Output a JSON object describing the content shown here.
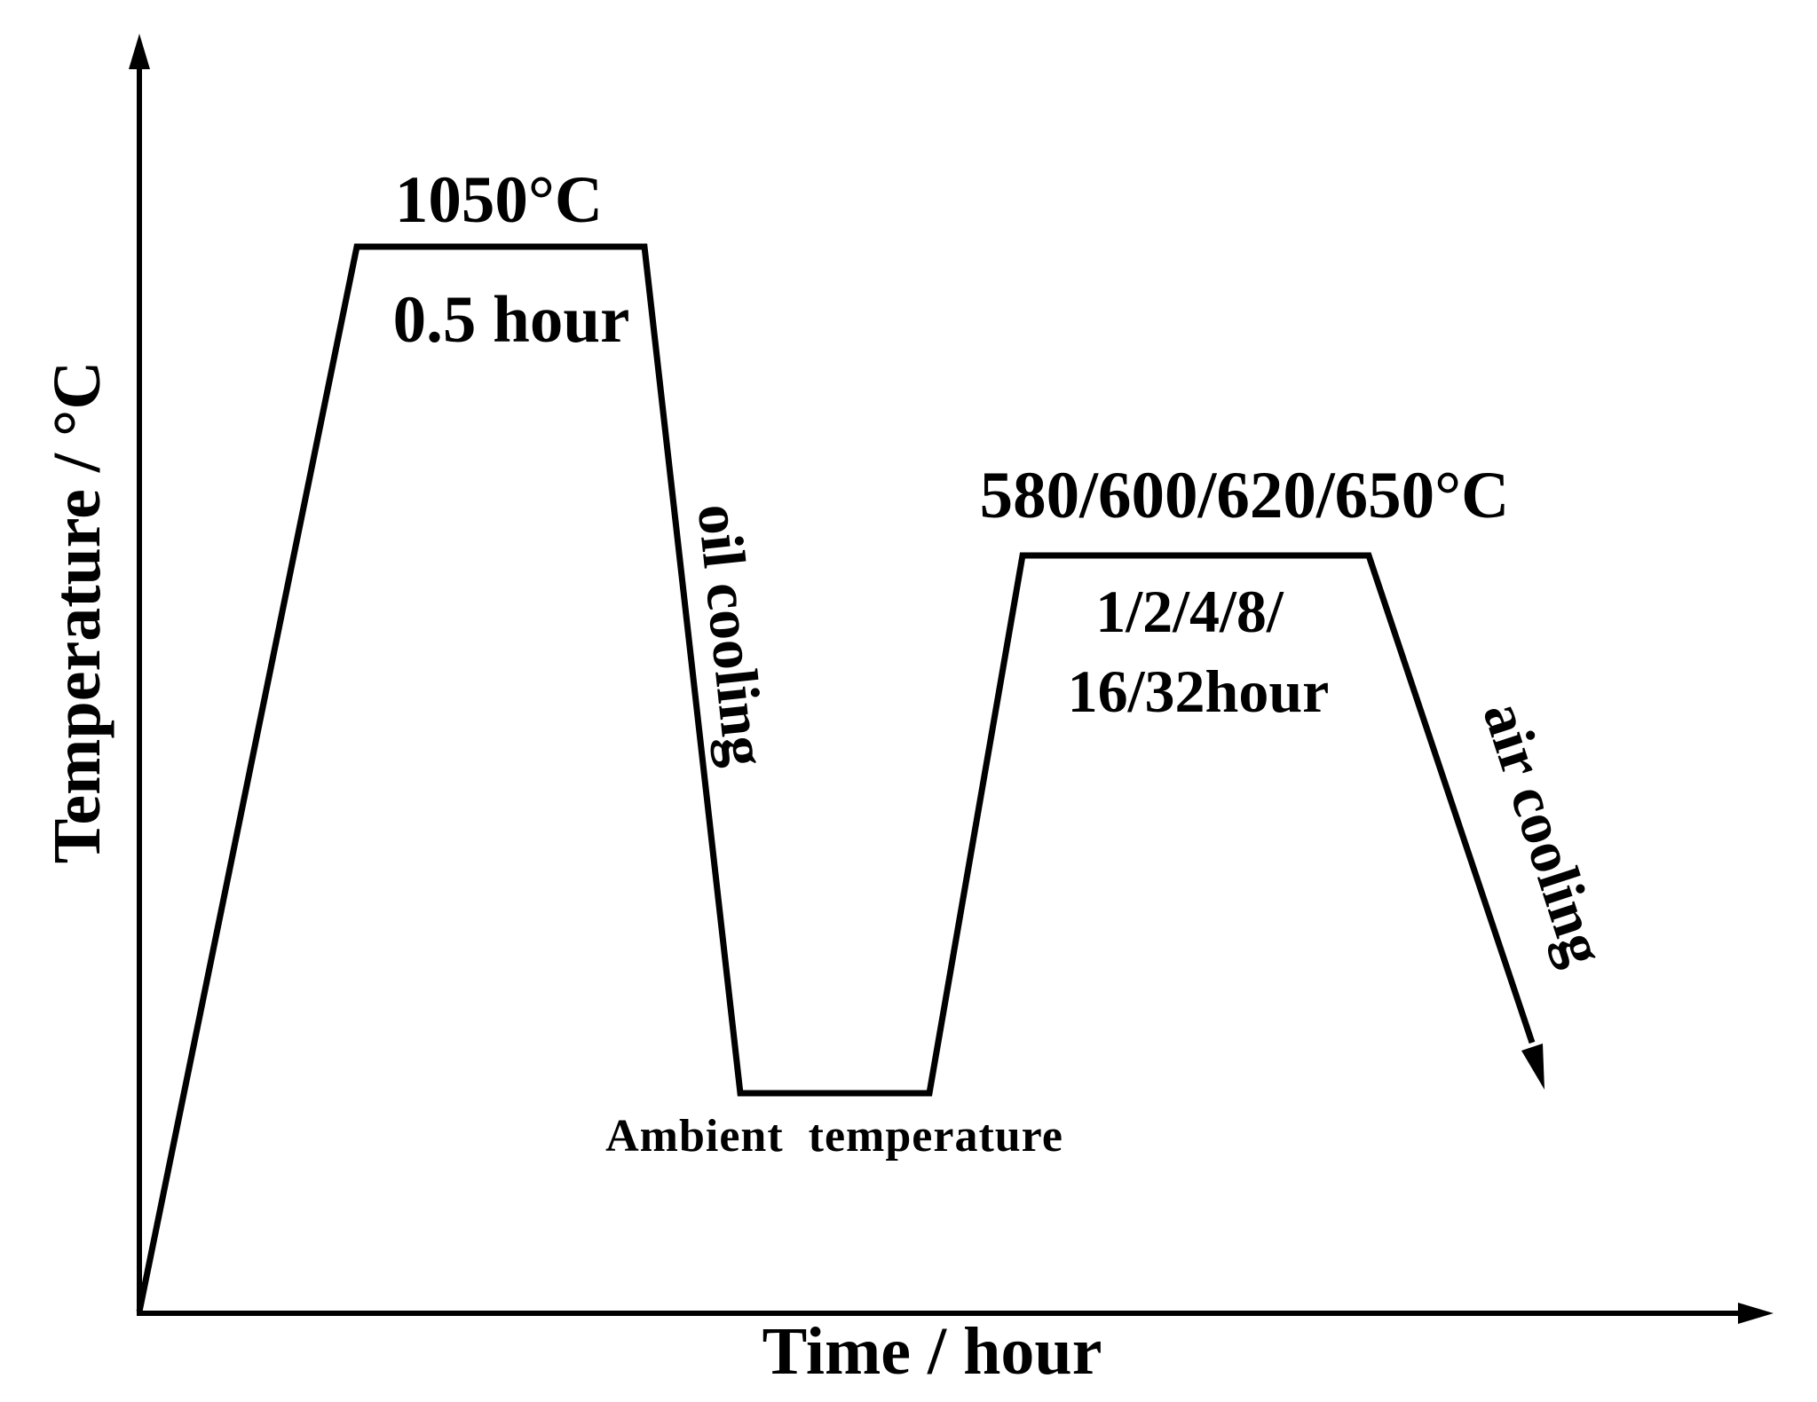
{
  "axes": {
    "x_title": "Time / hour",
    "y_title": "Temperature / °C"
  },
  "stages": {
    "austenitize": {
      "temperature": "1050°C",
      "duration": "0.5 hour"
    },
    "quench": {
      "medium": "oil cooling"
    },
    "ambient": {
      "label": "Ambient  temperature"
    },
    "temper": {
      "temperature": "580/600/620/650°C",
      "duration_line1": "1/2/4/8/",
      "duration_line2": "16/32hour"
    },
    "final_cool": {
      "medium": "air cooling"
    }
  },
  "colors": {
    "line": "#000000",
    "background": "#ffffff"
  }
}
